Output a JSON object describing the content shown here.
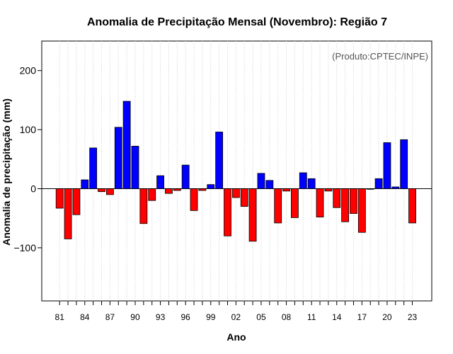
{
  "chart_data": {
    "type": "bar",
    "title": "Anomalia de Precipitação Mensal (Novembro): Região 7",
    "xlabel": "Ano",
    "ylabel": "Anomalia de precipitação (mm)",
    "credit": "(Produto:CPTEC/INPE)",
    "ylim": [
      -190,
      250
    ],
    "yticks": [
      -100,
      0,
      100,
      200
    ],
    "ytick_labels": [
      "−100",
      "0",
      "100",
      "200"
    ],
    "grid": "vertical-dotted",
    "colors": {
      "positive": "#0000ff",
      "negative": "#ff0000",
      "outline": "#000000"
    },
    "categories": [
      "81",
      "82",
      "83",
      "84",
      "85",
      "86",
      "87",
      "88",
      "89",
      "90",
      "91",
      "92",
      "93",
      "94",
      "95",
      "96",
      "97",
      "98",
      "99",
      "00",
      "01",
      "02",
      "03",
      "04",
      "05",
      "06",
      "07",
      "08",
      "09",
      "10",
      "11",
      "12",
      "13",
      "14",
      "15",
      "16",
      "17",
      "18",
      "19",
      "20",
      "21",
      "22",
      "23"
    ],
    "x_tick_labels": [
      "81",
      "84",
      "87",
      "90",
      "93",
      "96",
      "99",
      "02",
      "05",
      "08",
      "11",
      "14",
      "17",
      "20",
      "23"
    ],
    "values": [
      -33,
      -85,
      -44,
      15,
      69,
      -5,
      -10,
      104,
      148,
      72,
      -59,
      -20,
      22,
      -8,
      -3,
      40,
      -37,
      -3,
      7,
      96,
      -80,
      -15,
      -30,
      -89,
      26,
      14,
      -58,
      -4,
      -49,
      27,
      17,
      -48,
      -4,
      -32,
      -56,
      -42,
      -74,
      -1,
      17,
      78,
      3,
      83,
      -58
    ]
  }
}
